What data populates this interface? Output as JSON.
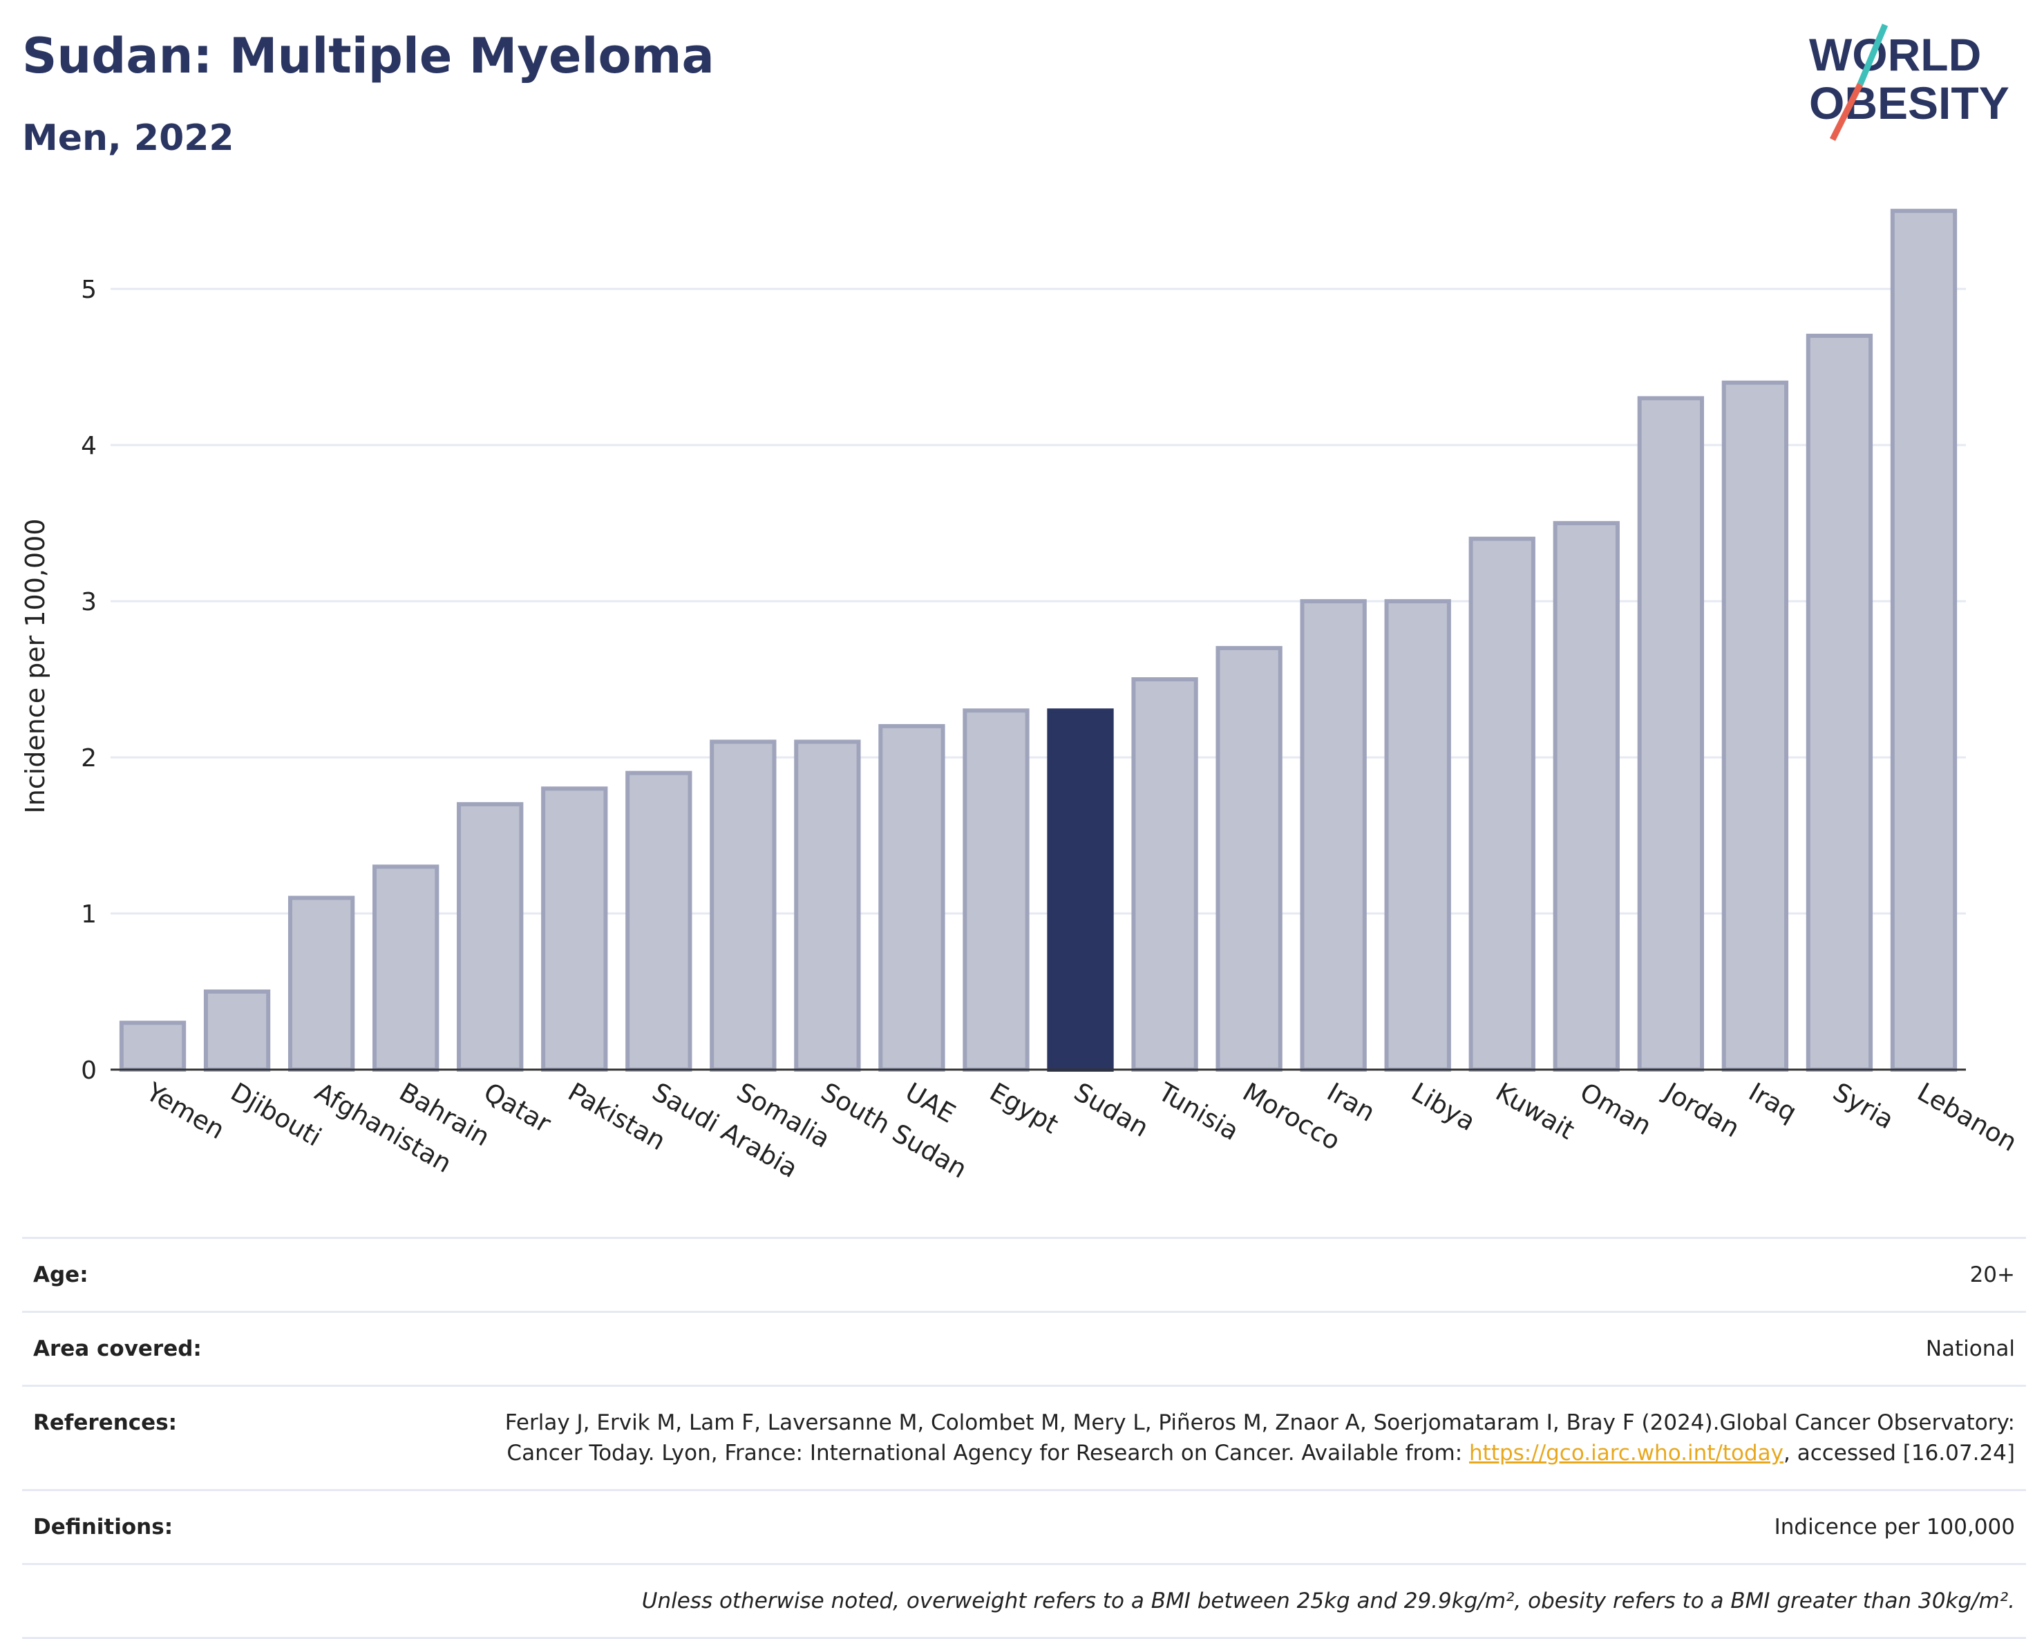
{
  "header": {
    "title": "Sudan: Multiple Myeloma",
    "subtitle": "Men, 2022"
  },
  "logo": {
    "line1": "WORLD",
    "line2": "OBESITY",
    "icon": "world-obesity-logo"
  },
  "colors": {
    "highlight": "#2a3561",
    "bar": "#bfc2d0",
    "bar_edge": "#9fa4bc",
    "grid": "#e6e9f3",
    "link": "#e8a81e"
  },
  "chart_data": {
    "type": "bar",
    "title": "Sudan: Multiple Myeloma",
    "subtitle": "Men, 2022",
    "xlabel": "",
    "ylabel": "Incidence per 100,000",
    "ylim": [
      0,
      5.7
    ],
    "yticks": [
      0,
      1,
      2,
      3,
      4,
      5
    ],
    "grid": true,
    "highlight": "Sudan",
    "categories": [
      "Yemen",
      "Djibouti",
      "Afghanistan",
      "Bahrain",
      "Qatar",
      "Pakistan",
      "Saudi Arabia",
      "Somalia",
      "South Sudan",
      "UAE",
      "Egypt",
      "Sudan",
      "Tunisia",
      "Morocco",
      "Iran",
      "Libya",
      "Kuwait",
      "Oman",
      "Jordan",
      "Iraq",
      "Syria",
      "Lebanon"
    ],
    "values": [
      0.3,
      0.5,
      1.1,
      1.3,
      1.7,
      1.8,
      1.9,
      2.1,
      2.1,
      2.2,
      2.3,
      2.3,
      2.5,
      2.7,
      3.0,
      3.0,
      3.4,
      3.5,
      4.3,
      4.4,
      4.7,
      5.5
    ]
  },
  "info": {
    "age_label": "Age:",
    "age_value": "20+",
    "area_label": "Area covered:",
    "area_value": "National",
    "references_label": "References:",
    "references_text": "Ferlay J, Ervik M, Lam F, Laversanne M, Colombet M, Mery L, Piñeros M, Znaor A, Soerjomataram I, Bray F (2024).Global Cancer Observatory: Cancer Today. Lyon, France: International Agency for Research on Cancer. Available from: ",
    "references_link": "https://gco.iarc.who.int/today",
    "references_suffix": ", accessed [16.07.24]",
    "definitions_label": "Definitions:",
    "definitions_value": "Indicence per 100,000",
    "note": "Unless otherwise noted, overweight refers to a BMI between 25kg and 29.9kg/m², obesity refers to a BMI greater than 30kg/m²."
  }
}
